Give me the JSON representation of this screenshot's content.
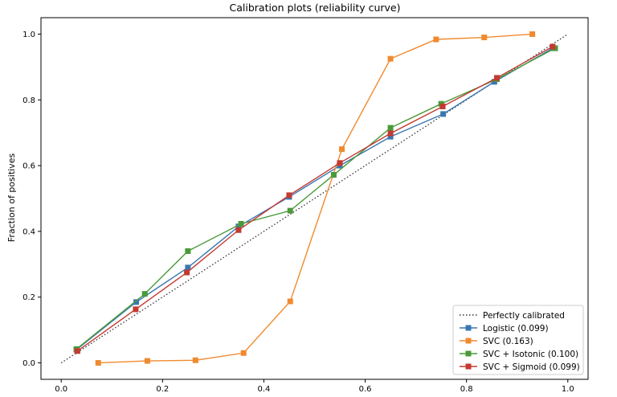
{
  "chart_data": {
    "type": "line",
    "title": "Calibration plots  (reliability curve)",
    "xlabel": "",
    "ylabel": "Fraction of positives",
    "xlim": [
      -0.04,
      1.04
    ],
    "ylim": [
      -0.05,
      1.05
    ],
    "xticks": [
      "0.0",
      "0.2",
      "0.4",
      "0.6",
      "0.8",
      "1.0"
    ],
    "yticks": [
      "0.0",
      "0.2",
      "0.4",
      "0.6",
      "0.8",
      "1.0"
    ],
    "legend_position": "bottom-right",
    "grid": false,
    "series": [
      {
        "name": "Perfectly calibrated",
        "color": "#333333",
        "style": "dotted",
        "marker": "none",
        "x": [
          0.0,
          1.0
        ],
        "y": [
          0.0,
          1.0
        ]
      },
      {
        "name": "Logistic (0.099)",
        "color": "#3a77b1",
        "style": "solid",
        "marker": "square",
        "x": [
          0.03,
          0.148,
          0.25,
          0.35,
          0.45,
          0.55,
          0.65,
          0.754,
          0.855,
          0.97
        ],
        "y": [
          0.04,
          0.185,
          0.29,
          0.415,
          0.505,
          0.6,
          0.688,
          0.757,
          0.855,
          0.957
        ]
      },
      {
        "name": "SVC (0.163)",
        "color": "#f08a2f",
        "style": "solid",
        "marker": "square",
        "x": [
          0.073,
          0.17,
          0.265,
          0.36,
          0.452,
          0.554,
          0.65,
          0.74,
          0.835,
          0.93
        ],
        "y": [
          0.0,
          0.006,
          0.008,
          0.03,
          0.187,
          0.65,
          0.925,
          0.984,
          0.99,
          1.0
        ]
      },
      {
        "name": "SVC + Isotonic (0.100)",
        "color": "#4a9a3a",
        "style": "solid",
        "marker": "square",
        "x": [
          0.03,
          0.165,
          0.25,
          0.355,
          0.452,
          0.538,
          0.65,
          0.75,
          0.86,
          0.975
        ],
        "y": [
          0.042,
          0.21,
          0.34,
          0.423,
          0.463,
          0.572,
          0.715,
          0.788,
          0.863,
          0.957
        ]
      },
      {
        "name": "SVC + Sigmoid (0.099)",
        "color": "#c33a31",
        "style": "solid",
        "marker": "square",
        "x": [
          0.032,
          0.147,
          0.248,
          0.35,
          0.45,
          0.55,
          0.65,
          0.753,
          0.86,
          0.97
        ],
        "y": [
          0.036,
          0.163,
          0.275,
          0.404,
          0.51,
          0.608,
          0.698,
          0.78,
          0.867,
          0.962
        ]
      }
    ]
  }
}
